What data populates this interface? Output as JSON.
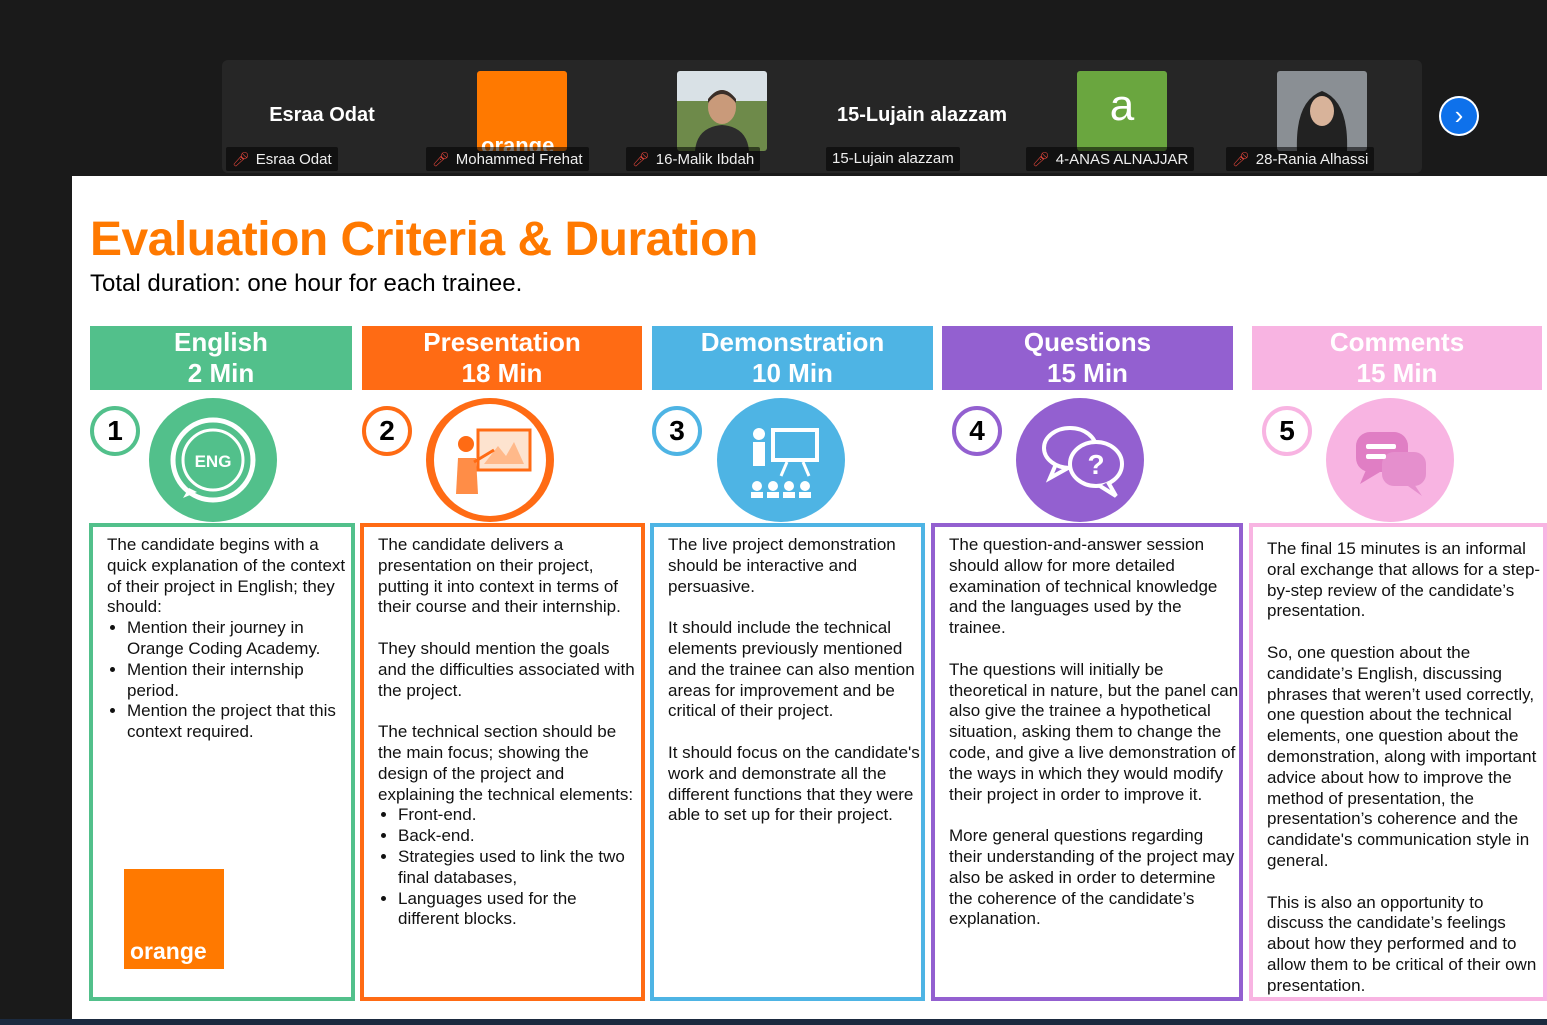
{
  "participants": [
    {
      "display": "Esraa Odat",
      "name": "Esraa Odat",
      "muted": true
    },
    {
      "display": "orange-logo",
      "name": "Mohammed Frehat",
      "muted": true
    },
    {
      "display": "photo",
      "name": "16-Malik Ibdah",
      "muted": true
    },
    {
      "display": "15-Lujain alazzam",
      "name": "15-Lujain alazzam",
      "muted": false
    },
    {
      "display": "a",
      "name": "4-ANAS ALNAJJAR",
      "muted": true
    },
    {
      "display": "photo",
      "name": "28-Rania Alhassi",
      "muted": true
    }
  ],
  "thumb_text": {
    "orange": "orange",
    "avatar_letter": "a"
  },
  "next_icon": "chevron-right-icon",
  "slide": {
    "title": "Evaluation Criteria & Duration",
    "subtitle": "Total duration: one hour for each trainee.",
    "logo_text": "orange",
    "columns": [
      {
        "heading": "English",
        "duration": "2 Min",
        "number": "1",
        "color": "#52c08b",
        "icon": "eng-chat-icon",
        "icon_text": "ENG",
        "paragraphs": [
          "The candidate begins with a quick explanation of the context of their project in English; they should:"
        ],
        "bullets": [
          "Mention their journey in Orange Coding Academy.",
          "Mention their internship period.",
          "Mention the project that this context required."
        ]
      },
      {
        "heading": "Presentation",
        "duration": "18 Min",
        "number": "2",
        "color": "#ff6b14",
        "icon": "presenter-icon",
        "paragraphs": [
          "The candidate delivers a presentation on their project, putting it into context in terms of their course and their internship.",
          "They should mention the goals and the difficulties associated with the project.",
          "The technical section should be the main focus; showing the design of the project and explaining the technical elements:"
        ],
        "bullets": [
          "Front-end.",
          "Back-end.",
          "Strategies used to link the two final databases,",
          "Languages used for the different blocks."
        ]
      },
      {
        "heading": "Demonstration",
        "duration": "10 Min",
        "number": "3",
        "color": "#4eb4e4",
        "icon": "demonstration-board-icon",
        "paragraphs": [
          "The live project demonstration should be interactive and persuasive.",
          "It should include the technical elements previously mentioned and the trainee can also mention areas for improvement and be critical of their project.",
          "It should focus on the candidate's work and demonstrate all the different functions that they were able to set up for their project."
        ],
        "bullets": []
      },
      {
        "heading": "Questions",
        "duration": "15 Min",
        "number": "4",
        "color": "#9360d0",
        "icon": "question-bubbles-icon",
        "paragraphs": [
          "The question-and-answer session should allow for more detailed examination of technical knowledge and the languages used by the trainee.",
          "The questions will initially be theoretical in nature, but the panel can also give the trainee a hypothetical situation, asking them to change the code, and give a live demonstration of the ways in which they would modify their project in order to improve it.",
          "More general questions regarding their understanding of the project may also be asked in order to determine the coherence of the candidate’s explanation."
        ],
        "bullets": []
      },
      {
        "heading": "Comments",
        "duration": "15 Min",
        "number": "5",
        "color": "#f8b4e2",
        "icon": "comment-bubbles-icon",
        "paragraphs": [
          "The final 15 minutes is an informal oral exchange that allows for a step-by-step review of the candidate’s presentation.",
          "So, one question about the candidate’s English, discussing phrases that weren’t used correctly, one question about the technical elements, one question about the demonstration, along with important advice about how to improve the method of presentation, the presentation’s coherence and the candidate's communication style in general.",
          "This is also an opportunity to discuss the candidate’s feelings about how they performed and to allow them to be critical of their own presentation."
        ],
        "bullets": []
      }
    ]
  }
}
